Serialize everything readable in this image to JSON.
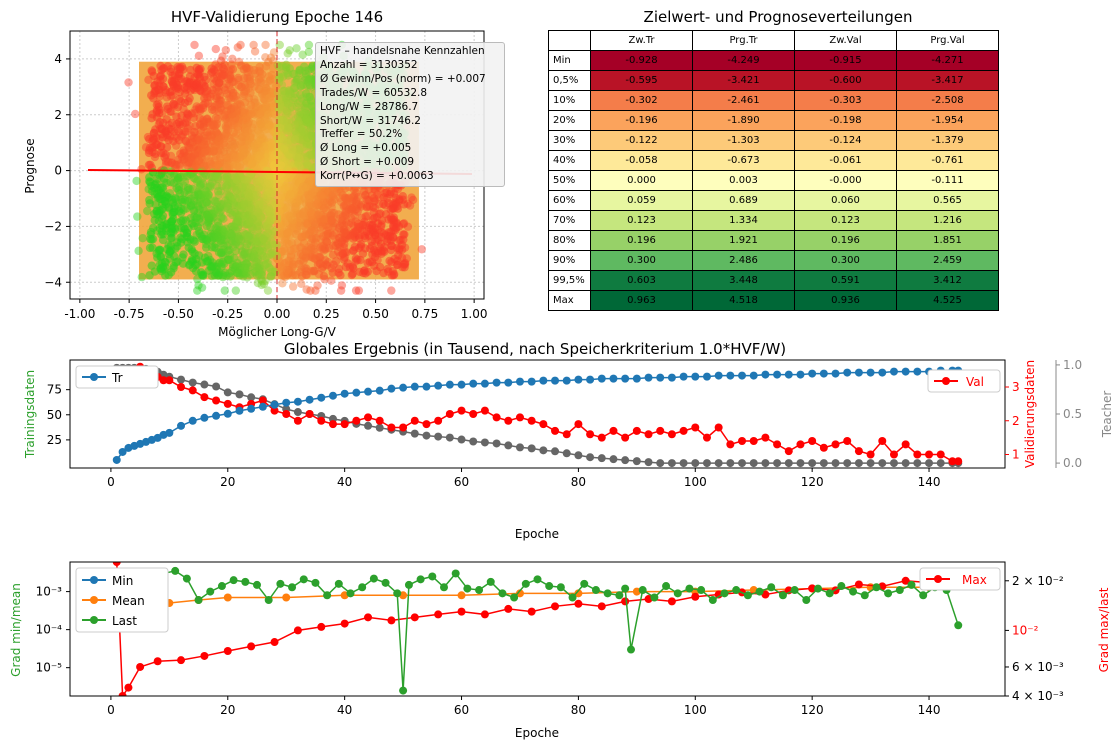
{
  "scatter": {
    "title": "HVF-Validierung Epoche 146",
    "xlabel": "Möglicher Long-G/V",
    "ylabel": "Prognose",
    "xticks": [
      "-1.00",
      "-0.75",
      "-0.50",
      "-0.25",
      "0.00",
      "0.25",
      "0.50",
      "0.75",
      "1.00"
    ],
    "yticks": [
      "4",
      "2",
      "0",
      "−2",
      "−4"
    ],
    "infobox": [
      "HVF – handelsnahe Kennzahlen",
      "Anzahl = 3130352",
      "Ø Gewinn/Pos (norm) = +0.007",
      "Trades/W  = 60532.8",
      "Long/W  = 28786.7",
      "Short/W  = 31746.2",
      "Treffer  = 50.2%",
      "Ø Long    = +0.005",
      "Ø Short   = +0.009",
      "Korr(P↔G) = +0.0063"
    ]
  },
  "table": {
    "title": "Zielwert- und Prognoseverteilungen",
    "columns": [
      "Zw.Tr",
      "Prg.Tr",
      "Zw.Val",
      "Prg.Val"
    ],
    "rows": [
      {
        "label": "Min",
        "values": [
          "-0.928",
          "-4.249",
          "-0.915",
          "-4.271"
        ]
      },
      {
        "label": "0,5%",
        "values": [
          "-0.595",
          "-3.421",
          "-0.600",
          "-3.417"
        ]
      },
      {
        "label": "10%",
        "values": [
          "-0.302",
          "-2.461",
          "-0.303",
          "-2.508"
        ]
      },
      {
        "label": "20%",
        "values": [
          "-0.196",
          "-1.890",
          "-0.198",
          "-1.954"
        ]
      },
      {
        "label": "30%",
        "values": [
          "-0.122",
          "-1.303",
          "-0.124",
          "-1.379"
        ]
      },
      {
        "label": "40%",
        "values": [
          "-0.058",
          "-0.673",
          "-0.061",
          "-0.761"
        ]
      },
      {
        "label": "50%",
        "values": [
          "0.000",
          "0.003",
          "-0.000",
          "-0.111"
        ]
      },
      {
        "label": "60%",
        "values": [
          "0.059",
          "0.689",
          "0.060",
          "0.565"
        ]
      },
      {
        "label": "70%",
        "values": [
          "0.123",
          "1.334",
          "0.123",
          "1.216"
        ]
      },
      {
        "label": "80%",
        "values": [
          "0.196",
          "1.921",
          "0.196",
          "1.851"
        ]
      },
      {
        "label": "90%",
        "values": [
          "0.300",
          "2.486",
          "0.300",
          "2.459"
        ]
      },
      {
        "label": "99,5%",
        "values": [
          "0.603",
          "3.448",
          "0.591",
          "3.412"
        ]
      },
      {
        "label": "Max",
        "values": [
          "0.963",
          "4.518",
          "0.936",
          "4.525"
        ]
      }
    ],
    "row_colors": [
      "#a50026",
      "#b91326",
      "#f47d4a",
      "#fba35c",
      "#fdca79",
      "#fee999",
      "#fefebd",
      "#e7f6a0",
      "#c5e67e",
      "#97d168",
      "#5fb961",
      "#0f7b40",
      "#006837"
    ]
  },
  "chart_data": [
    {
      "type": "scatter",
      "title": "HVF-Validierung Epoche 146",
      "xlabel": "Möglicher Long-G/V",
      "ylabel": "Prognose",
      "xlim": [
        -1.05,
        1.05
      ],
      "ylim": [
        -4.6,
        5.0
      ],
      "grid": true,
      "points": "dense cloud approx 3130352 samples, x in [-0.93,0.96], y in [-4.3,4.5], colored green (correct sign) to red (wrong sign)",
      "regression_line": {
        "intercept": -0.0,
        "slope": -0.1
      },
      "vline_x": 0.0
    },
    {
      "type": "line",
      "title": "Globales Ergebnis (in Tausend, nach Speicherkriterium 1.0*HVF/W)",
      "xlabel": "Epoche",
      "ylabels": [
        "Trainingsdaten",
        "Validierungsdaten",
        "Teacher"
      ],
      "xlim": [
        -7,
        153
      ],
      "x": [
        1,
        2,
        3,
        4,
        5,
        6,
        7,
        8,
        9,
        10,
        12,
        14,
        16,
        18,
        20,
        22,
        24,
        26,
        28,
        30,
        32,
        34,
        36,
        38,
        40,
        42,
        44,
        46,
        48,
        50,
        52,
        54,
        56,
        58,
        60,
        62,
        64,
        66,
        68,
        70,
        72,
        74,
        76,
        78,
        80,
        82,
        84,
        86,
        88,
        90,
        92,
        94,
        96,
        98,
        100,
        102,
        104,
        106,
        108,
        110,
        112,
        114,
        116,
        118,
        120,
        122,
        124,
        126,
        128,
        130,
        132,
        134,
        136,
        138,
        140,
        142,
        144,
        145
      ],
      "series": [
        {
          "name": "Tr",
          "axis": "left",
          "ylim": [
            0,
            100
          ],
          "values": [
            5,
            13,
            17,
            19,
            21,
            23,
            25,
            27,
            30,
            32,
            39,
            44,
            47,
            49,
            51,
            54,
            56,
            58,
            60,
            62,
            63,
            65,
            67,
            69,
            71,
            72,
            73,
            74,
            76,
            77,
            78,
            78,
            79,
            80,
            80,
            81,
            81,
            82,
            82,
            83,
            83,
            84,
            84,
            84,
            85,
            85,
            86,
            86,
            86,
            86,
            87,
            87,
            87,
            88,
            88,
            88,
            89,
            89,
            89,
            89,
            90,
            90,
            90,
            90,
            91,
            91,
            91,
            92,
            92,
            92,
            92,
            93,
            93,
            93,
            93,
            94,
            94,
            94
          ]
        },
        {
          "name": "Val",
          "axis": "right",
          "ylim": [
            0.6,
            3.8
          ],
          "values": [
            3.1,
            3.5,
            3.4,
            3.4,
            3.6,
            3.4,
            3.5,
            3.3,
            3.2,
            3.2,
            3.0,
            2.9,
            2.7,
            2.6,
            2.5,
            2.4,
            2.5,
            2.6,
            2.3,
            2.2,
            2.0,
            2.2,
            2.0,
            1.9,
            1.9,
            2.0,
            2.1,
            2.0,
            1.8,
            1.8,
            2.0,
            1.9,
            2.0,
            2.2,
            2.3,
            2.2,
            2.3,
            2.1,
            2.0,
            2.1,
            2.0,
            1.9,
            1.7,
            1.6,
            1.9,
            1.6,
            1.5,
            1.7,
            1.5,
            1.7,
            1.6,
            1.7,
            1.6,
            1.7,
            1.8,
            1.5,
            1.8,
            1.3,
            1.4,
            1.4,
            1.5,
            1.3,
            1.1,
            1.3,
            1.4,
            1.2,
            1.3,
            1.4,
            1.1,
            1.0,
            1.4,
            1.0,
            1.3,
            1.0,
            1.0,
            1.0,
            0.8,
            0.8
          ]
        },
        {
          "name": "Teacher",
          "axis": "right2",
          "ylim": [
            -0.05,
            1.05
          ],
          "values": [
            0.97,
            0.97,
            0.97,
            0.97,
            0.96,
            0.96,
            0.95,
            0.93,
            0.9,
            0.88,
            0.85,
            0.82,
            0.8,
            0.78,
            0.72,
            0.7,
            0.67,
            0.65,
            0.6,
            0.55,
            0.52,
            0.5,
            0.48,
            0.45,
            0.43,
            0.4,
            0.38,
            0.36,
            0.34,
            0.32,
            0.3,
            0.28,
            0.27,
            0.26,
            0.24,
            0.22,
            0.21,
            0.2,
            0.18,
            0.16,
            0.15,
            0.13,
            0.12,
            0.1,
            0.08,
            0.06,
            0.05,
            0.04,
            0.03,
            0.02,
            0.01,
            0.0,
            0.0,
            0.0,
            0.0,
            0.0,
            0.0,
            0.0,
            0.0,
            0.0,
            0.0,
            0.0,
            0.0,
            0.0,
            0.0,
            0.0,
            0.0,
            0.0,
            0.0,
            0.0,
            0.0,
            0.0,
            0.0,
            0.0,
            0.0,
            0.0,
            0.0,
            0.0
          ]
        }
      ]
    },
    {
      "type": "line",
      "xlabel": "Epoche",
      "ylabels": [
        "Grad min/mean",
        "Grad max/last"
      ],
      "yscale": "log",
      "xlim": [
        -7,
        153
      ],
      "series": [
        {
          "name": "Mean",
          "axis": "left",
          "x": [
            1,
            3,
            5,
            8,
            10,
            15,
            20,
            30,
            40,
            50,
            60,
            70,
            80,
            90,
            100,
            110,
            120,
            130,
            140,
            145
          ],
          "values": [
            0.0002,
            0.0003,
            0.0004,
            0.0005,
            0.0005,
            0.0006,
            0.0007,
            0.0007,
            0.0008,
            0.0008,
            0.0008,
            0.0009,
            0.0009,
            0.001,
            0.001,
            0.0011,
            0.0012,
            0.0013,
            0.0013,
            0.0014
          ]
        },
        {
          "name": "Last",
          "axis": "left",
          "x": [
            1,
            3,
            5,
            7,
            9,
            11,
            13,
            15,
            17,
            19,
            21,
            23,
            25,
            27,
            29,
            31,
            33,
            35,
            37,
            39,
            41,
            43,
            45,
            47,
            49,
            50,
            51,
            53,
            55,
            57,
            59,
            61,
            63,
            65,
            67,
            69,
            71,
            73,
            75,
            77,
            79,
            81,
            83,
            85,
            87,
            88,
            89,
            91,
            93,
            95,
            97,
            99,
            101,
            103,
            105,
            107,
            109,
            111,
            113,
            115,
            117,
            119,
            121,
            123,
            125,
            127,
            129,
            131,
            133,
            135,
            137,
            139,
            141,
            143,
            145
          ],
          "values": [
            0.0008,
            0.0006,
            0.0011,
            0.0025,
            0.003,
            0.0035,
            0.0022,
            0.0006,
            0.001,
            0.0014,
            0.002,
            0.0018,
            0.0015,
            0.0006,
            0.0016,
            0.0013,
            0.0021,
            0.0017,
            0.0008,
            0.0016,
            0.0009,
            0.0013,
            0.0022,
            0.0017,
            0.0009,
            2.5e-06,
            0.0015,
            0.0021,
            0.0025,
            0.0013,
            0.003,
            0.0012,
            0.0011,
            0.0018,
            0.0009,
            0.0007,
            0.0016,
            0.0021,
            0.0014,
            0.0013,
            0.0007,
            0.0016,
            0.0011,
            0.0009,
            0.0008,
            0.0012,
            3e-05,
            0.0011,
            0.0007,
            0.0014,
            0.0009,
            0.0012,
            0.0011,
            0.0006,
            0.0009,
            0.0011,
            0.0008,
            0.001,
            0.0013,
            0.0008,
            0.0011,
            0.0006,
            0.0012,
            0.0009,
            0.0014,
            0.001,
            0.0008,
            0.0013,
            0.0009,
            0.0011,
            0.0015,
            0.0008,
            0.0013,
            0.0011,
            0.00013
          ]
        },
        {
          "name": "Min",
          "axis": "left",
          "x": [],
          "values": []
        },
        {
          "name": "Max",
          "axis": "right",
          "x": [
            1,
            2,
            3,
            5,
            8,
            12,
            16,
            20,
            24,
            28,
            32,
            36,
            40,
            44,
            48,
            52,
            56,
            60,
            64,
            68,
            72,
            76,
            80,
            84,
            88,
            92,
            96,
            100,
            104,
            108,
            112,
            116,
            120,
            124,
            128,
            132,
            136,
            140,
            144,
            146
          ],
          "values": [
            0.026,
            0.004,
            0.0045,
            0.006,
            0.0065,
            0.0066,
            0.007,
            0.0075,
            0.008,
            0.0085,
            0.01,
            0.0105,
            0.011,
            0.012,
            0.0115,
            0.012,
            0.0125,
            0.013,
            0.0125,
            0.0135,
            0.013,
            0.014,
            0.0145,
            0.014,
            0.015,
            0.0155,
            0.015,
            0.016,
            0.0165,
            0.017,
            0.0165,
            0.0175,
            0.018,
            0.0175,
            0.019,
            0.0185,
            0.02,
            0.0195,
            0.021,
            0.022
          ]
        }
      ]
    }
  ],
  "panel2": {
    "title": "Globales Ergebnis (in Tausend, nach Speicherkriterium 1.0*HVF/W)",
    "xlabel": "Epoche",
    "ylabel_left": "Trainingsdaten",
    "ylabel_right": "Validierungsdaten",
    "ylabel_right2": "Teacher",
    "legend_left": "Tr",
    "legend_right": "Val",
    "xticks": [
      "0",
      "20",
      "40",
      "60",
      "80",
      "100",
      "120",
      "140"
    ],
    "yticks_left": [
      "75",
      "50",
      "25"
    ],
    "yticks_right": [
      "3",
      "2",
      "1"
    ],
    "yticks_right2": [
      "1.0",
      "0.5",
      "0.0"
    ]
  },
  "panel3": {
    "xlabel": "Epoche",
    "ylabel_left": "Grad min/mean",
    "ylabel_right": "Grad max/last",
    "legend_left": [
      "Min",
      "Mean",
      "Last"
    ],
    "legend_right": "Max",
    "xticks": [
      "0",
      "20",
      "40",
      "60",
      "80",
      "100",
      "120",
      "140"
    ],
    "yticks_left": [
      "10⁻³",
      "10⁻⁴",
      "10⁻⁵"
    ],
    "yticks_right": [
      "2 × 10⁻²",
      "10⁻²",
      "6 × 10⁻³",
      "4 × 10⁻³"
    ]
  },
  "colors": {
    "blue": "#1f77b4",
    "orange": "#ff7f0e",
    "green": "#2ca02c",
    "red": "#ff0000",
    "gray": "#666666"
  }
}
